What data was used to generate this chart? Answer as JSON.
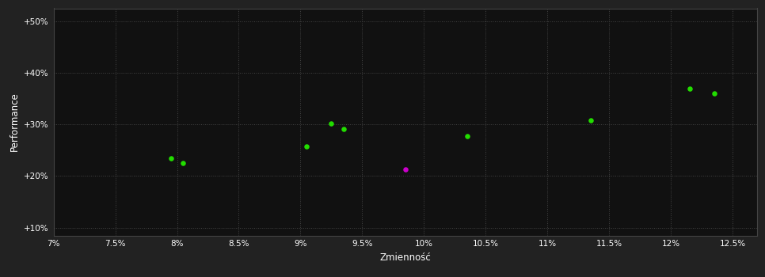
{
  "background_color": "#222222",
  "plot_bg_color": "#111111",
  "grid_color": "#444444",
  "x_label": "Zmienność",
  "y_label": "Performance",
  "x_ticks": [
    0.07,
    0.075,
    0.08,
    0.085,
    0.09,
    0.095,
    0.1,
    0.105,
    0.11,
    0.115,
    0.12,
    0.125
  ],
  "x_tick_labels": [
    "7%",
    "7.5%",
    "8%",
    "8.5%",
    "9%",
    "9.5%",
    "10%",
    "10.5%",
    "11%",
    "11.5%",
    "12%",
    "12.5%"
  ],
  "y_ticks": [
    0.1,
    0.2,
    0.3,
    0.4,
    0.5
  ],
  "y_tick_labels": [
    "+10%",
    "+20%",
    "+30%",
    "+40%",
    "+50%"
  ],
  "xlim": [
    0.07,
    0.127
  ],
  "ylim": [
    0.085,
    0.525
  ],
  "green_points": [
    [
      0.0795,
      0.234
    ],
    [
      0.0805,
      0.226
    ],
    [
      0.0905,
      0.257
    ],
    [
      0.0925,
      0.302
    ],
    [
      0.0935,
      0.291
    ],
    [
      0.1035,
      0.278
    ],
    [
      0.1135,
      0.308
    ],
    [
      0.1215,
      0.37
    ],
    [
      0.1235,
      0.36
    ]
  ],
  "magenta_points": [
    [
      0.0985,
      0.213
    ]
  ],
  "green_color": "#22dd00",
  "magenta_color": "#cc00cc",
  "point_size": 22
}
